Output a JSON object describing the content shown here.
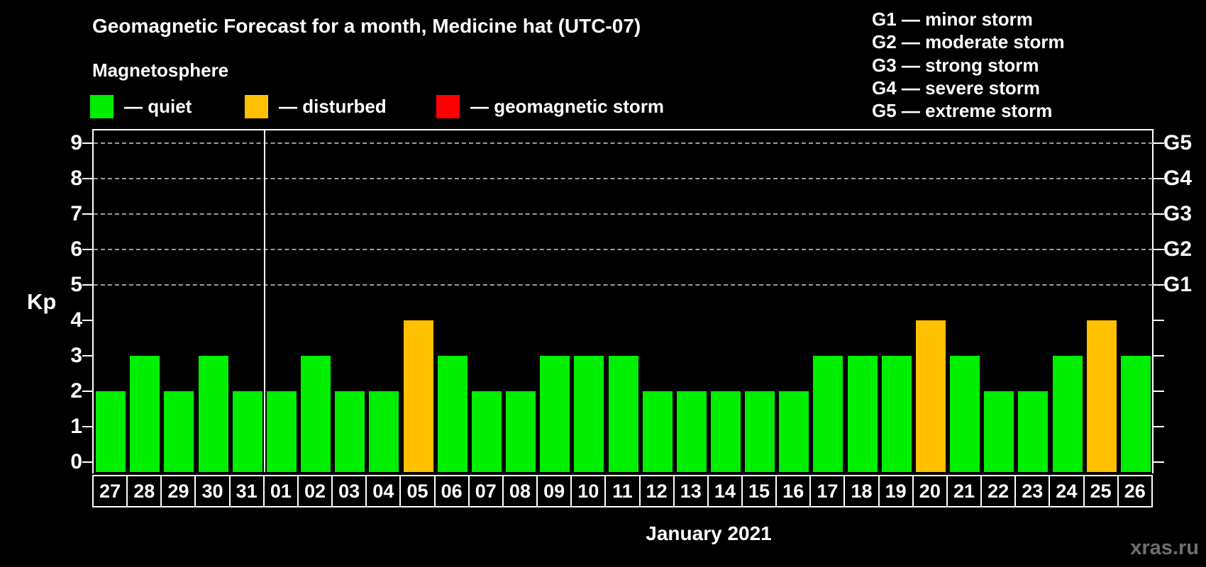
{
  "header": {
    "title": "Geomagnetic Forecast for a month, Medicine hat (UTC-07)",
    "subtitle": "Magnetosphere"
  },
  "legend": {
    "items": [
      {
        "key": "quiet",
        "label": "— quiet"
      },
      {
        "key": "disturbed",
        "label": "— disturbed"
      },
      {
        "key": "storm",
        "label": "— geomagnetic storm"
      }
    ]
  },
  "g_scale_legend": {
    "items": [
      "G1 — minor storm",
      "G2 — moderate storm",
      "G3 — strong storm",
      "G4 — severe storm",
      "G5 — extreme storm"
    ]
  },
  "colors": {
    "quiet": "#00ee00",
    "disturbed": "#ffc000",
    "storm": "#ff0000",
    "grid": "#9b9b9b",
    "axis": "#ffffff",
    "watermark": "#6f6f6f"
  },
  "watermark": "xras.ru",
  "chart_data": {
    "type": "bar",
    "title": "Geomagnetic Forecast for a month, Medicine hat (UTC-07)",
    "ylabel": "Kp",
    "xlabel": "January 2021",
    "ylim": [
      0,
      9
    ],
    "y_ticks": [
      0,
      1,
      2,
      3,
      4,
      5,
      6,
      7,
      8,
      9
    ],
    "grid_levels": [
      5,
      6,
      7,
      8,
      9
    ],
    "right_axis_labels": [
      {
        "value": 5,
        "label": "G1"
      },
      {
        "value": 6,
        "label": "G2"
      },
      {
        "value": 7,
        "label": "G3"
      },
      {
        "value": 8,
        "label": "G4"
      },
      {
        "value": 9,
        "label": "G5"
      }
    ],
    "month_separator_after_index": 4,
    "legend_position": "top",
    "grid": "dashed-horizontal",
    "categories": [
      "27",
      "28",
      "29",
      "30",
      "31",
      "01",
      "02",
      "03",
      "04",
      "05",
      "06",
      "07",
      "08",
      "09",
      "10",
      "11",
      "12",
      "13",
      "14",
      "15",
      "16",
      "17",
      "18",
      "19",
      "20",
      "21",
      "22",
      "23",
      "24",
      "25",
      "26"
    ],
    "values": [
      2,
      3,
      2,
      3,
      2,
      2,
      3,
      2,
      2,
      4,
      3,
      2,
      2,
      3,
      3,
      3,
      2,
      2,
      2,
      2,
      2,
      3,
      3,
      3,
      4,
      3,
      2,
      2,
      3,
      4,
      3
    ],
    "statuses": [
      "quiet",
      "quiet",
      "quiet",
      "quiet",
      "quiet",
      "quiet",
      "quiet",
      "quiet",
      "quiet",
      "disturbed",
      "quiet",
      "quiet",
      "quiet",
      "quiet",
      "quiet",
      "quiet",
      "quiet",
      "quiet",
      "quiet",
      "quiet",
      "quiet",
      "quiet",
      "quiet",
      "quiet",
      "disturbed",
      "quiet",
      "quiet",
      "quiet",
      "quiet",
      "disturbed",
      "quiet"
    ]
  }
}
